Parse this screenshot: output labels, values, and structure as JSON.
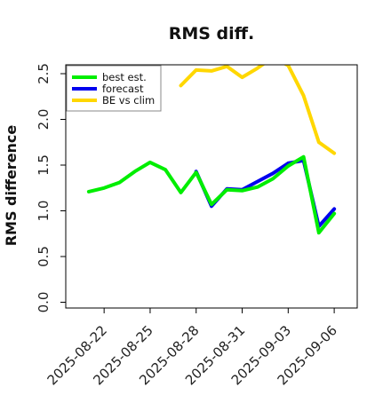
{
  "chart_data": {
    "type": "line",
    "title": "RMS diff.",
    "xlabel": "",
    "ylabel": "RMS difference",
    "ylim": [
      0,
      2.6
    ],
    "yticks": [
      0.0,
      0.5,
      1.0,
      1.5,
      2.0,
      2.5
    ],
    "ytick_labels": [
      "0.0",
      "0.5",
      "1.0",
      "1.5",
      "2.0",
      "2.5"
    ],
    "x_range": [
      "2025-08-19T12:00",
      "2025-09-07T12:00"
    ],
    "xticks": [
      "2025-08-22",
      "2025-08-25",
      "2025-08-28",
      "2025-08-31",
      "2025-09-03",
      "2025-09-06"
    ],
    "xtick_labels": [
      "2025-08-22",
      "2025-08-25",
      "2025-08-28",
      "2025-08-31",
      "2025-09-03",
      "2025-09-06"
    ],
    "highlight_xtick": "2025-08-28",
    "highlight_color": "#228B22",
    "grid": false,
    "legend_position": "top-left",
    "x": [
      "2025-08-21",
      "2025-08-22",
      "2025-08-23",
      "2025-08-24",
      "2025-08-25",
      "2025-08-26",
      "2025-08-27",
      "2025-08-28",
      "2025-08-29",
      "2025-08-30",
      "2025-08-31",
      "2025-09-01",
      "2025-09-02",
      "2025-09-03",
      "2025-09-04",
      "2025-09-05",
      "2025-09-06"
    ],
    "series": [
      {
        "name": "best est.",
        "color": "#00ee00",
        "values": [
          1.21,
          1.25,
          1.31,
          1.43,
          1.53,
          1.45,
          1.2,
          1.42,
          1.07,
          1.23,
          1.22,
          1.26,
          1.35,
          1.49,
          1.59,
          0.76,
          0.97
        ]
      },
      {
        "name": "forecast",
        "color": "#0000ee",
        "values": [
          null,
          null,
          null,
          null,
          null,
          null,
          null,
          1.43,
          1.05,
          1.24,
          1.23,
          1.32,
          1.41,
          1.52,
          1.55,
          0.83,
          1.02
        ]
      },
      {
        "name": "BE vs clim",
        "color": "#ffd700",
        "values": [
          null,
          null,
          null,
          null,
          null,
          null,
          2.37,
          2.54,
          2.53,
          2.58,
          2.46,
          2.56,
          2.68,
          2.59,
          2.26,
          1.75,
          1.63
        ]
      }
    ]
  }
}
